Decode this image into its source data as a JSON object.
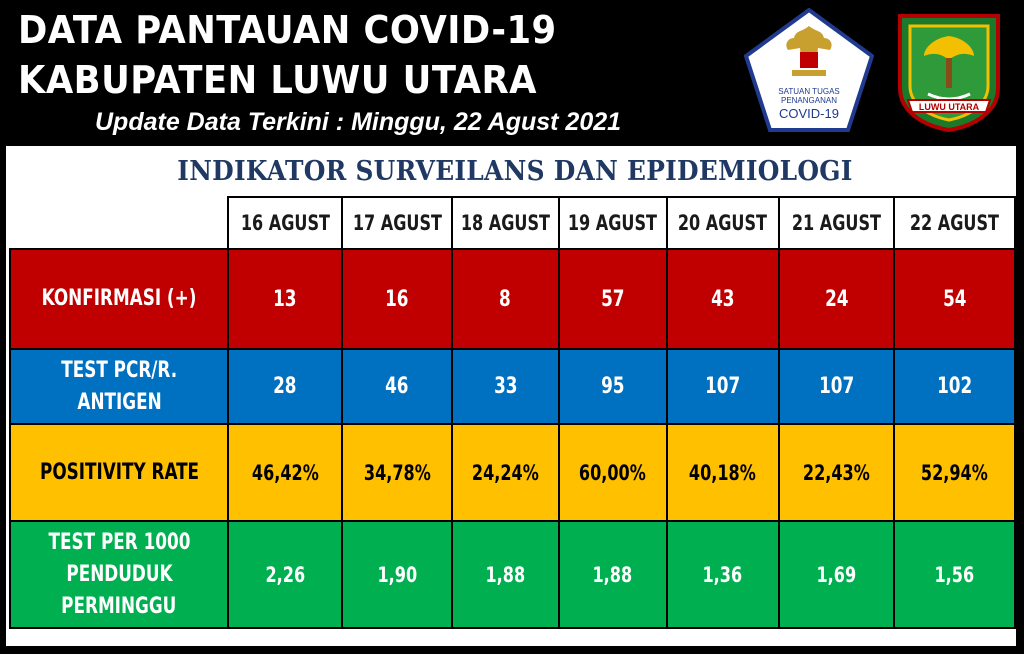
{
  "header": {
    "title_line1": "DATA PANTAUAN COVID-19",
    "title_line2": "KABUPATEN LUWU UTARA",
    "update": "Update Data Terkini : Minggu, 22 Agust 2021"
  },
  "logos": {
    "satgas": {
      "lines": [
        "SATUAN TUGAS",
        "PENANGANAN",
        "COVID-19"
      ],
      "color": "#1f3a8f"
    },
    "luwu_utara": {
      "text": "LUWU UTARA",
      "color": "#1a7a2a"
    }
  },
  "subtitle": "INDIKATOR SURVEILANS DAN EPIDEMIOLOGI",
  "table": {
    "columns": [
      "16 AGUST",
      "17 AGUST",
      "18 AGUST",
      "19 AGUST",
      "20 AGUST",
      "21 AGUST",
      "22 AGUST"
    ],
    "rows": [
      {
        "label": [
          "KONFIRMASI (+)"
        ],
        "values": [
          "13",
          "16",
          "8",
          "57",
          "43",
          "24",
          "54"
        ]
      },
      {
        "label": [
          "TEST PCR/R.",
          "ANTIGEN"
        ],
        "values": [
          "28",
          "46",
          "33",
          "95",
          "107",
          "107",
          "102"
        ]
      },
      {
        "label": [
          "POSITIVITY RATE"
        ],
        "values": [
          "46,42%",
          "34,78%",
          "24,24%",
          "60,00%",
          "40,18%",
          "22,43%",
          "52,94%"
        ]
      },
      {
        "label": [
          "TEST PER 1000",
          "PENDUDUK",
          "PERMINGGU"
        ],
        "values": [
          "2,26",
          "1,90",
          "1,88",
          "1,88",
          "1,36",
          "1,69",
          "1,56"
        ]
      }
    ]
  },
  "colors": {
    "red": "#c00000",
    "blue": "#0070c0",
    "yellow": "#ffc000",
    "green": "#00b050"
  }
}
